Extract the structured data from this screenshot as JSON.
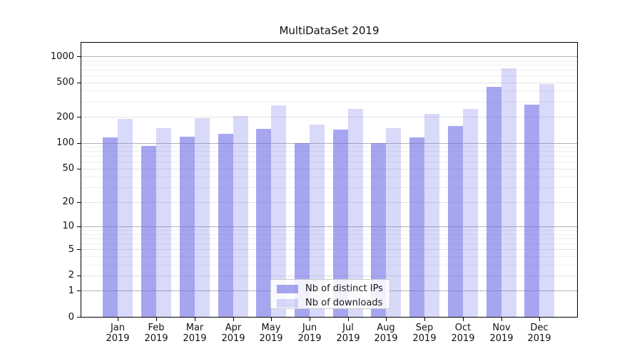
{
  "chart_data": {
    "type": "bar",
    "title": "MultiDataSet 2019",
    "categories": [
      "Jan",
      "Feb",
      "Mar",
      "Apr",
      "May",
      "Jun",
      "Jul",
      "Aug",
      "Sep",
      "Oct",
      "Nov",
      "Dec"
    ],
    "x_year_label": "2019",
    "series": [
      {
        "name": "Nb of distinct IPs",
        "color": "rgba(102,102,230,0.58)",
        "values": [
          115,
          91,
          117,
          127,
          146,
          100,
          143,
          100,
          115,
          155,
          440,
          278
        ]
      },
      {
        "name": "Nb of downloads",
        "color": "rgba(102,102,230,0.25)",
        "values": [
          190,
          147,
          192,
          203,
          270,
          161,
          248,
          149,
          215,
          245,
          725,
          480
        ]
      }
    ],
    "y_ticks": [
      0,
      1,
      2,
      5,
      10,
      20,
      50,
      100,
      200,
      500,
      1000
    ],
    "y_scale": "symlog",
    "ylim": [
      0,
      1460
    ],
    "xlabel": "",
    "ylabel": "",
    "grid": "on",
    "legend_position": "lower center",
    "colors": {
      "axis": "#000000",
      "grid_major": "#b3b3b3",
      "grid_mid": "#e2e2e2",
      "grid_minor": "#eeeeee",
      "background": "#ffffff"
    }
  }
}
